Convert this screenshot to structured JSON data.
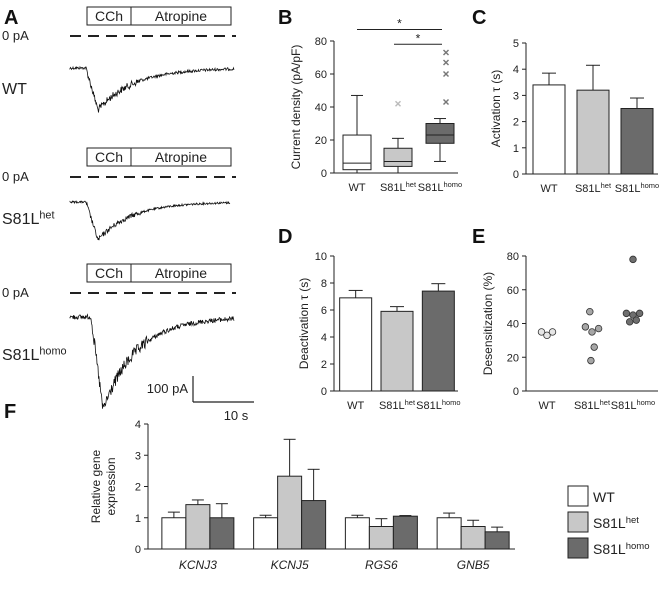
{
  "panels": {
    "A": {
      "letter": "A",
      "bar_labels": [
        "CCh",
        "Atropine"
      ],
      "baseline_label": "0 pA",
      "traces": [
        {
          "label_main": "WT",
          "label_sup": ""
        },
        {
          "label_main": "S81L",
          "label_sup": "het"
        },
        {
          "label_main": "S81L",
          "label_sup": "homo"
        }
      ],
      "scale_y_label": "100 pA",
      "scale_x_label": "10 s"
    },
    "B": {
      "letter": "B"
    },
    "C": {
      "letter": "C"
    },
    "D": {
      "letter": "D"
    },
    "E": {
      "letter": "E"
    },
    "F": {
      "letter": "F"
    }
  },
  "genotypes": [
    {
      "main": "WT",
      "sup": ""
    },
    {
      "main": "S81L",
      "sup": "het"
    },
    {
      "main": "S81L",
      "sup": "homo"
    }
  ],
  "colors": {
    "WT": "#ffffff",
    "S81L_het": "#c8c8c8",
    "S81L_homo": "#6b6b6b",
    "outlier_het": "#bbbbbb",
    "outlier_homo": "#777777"
  },
  "chart_data": [
    {
      "panel": "B",
      "type": "box",
      "ylabel": "Current density (pA/pF)",
      "ylim": [
        0,
        80
      ],
      "yticks": [
        0,
        20,
        40,
        60,
        80
      ],
      "boxes": [
        {
          "q1": 2,
          "median": 6,
          "q3": 23,
          "whisker_low": 0,
          "whisker_high": 47,
          "outliers": []
        },
        {
          "q1": 4,
          "median": 7,
          "q3": 15,
          "whisker_low": 0,
          "whisker_high": 21,
          "outliers": [
            42
          ]
        },
        {
          "q1": 18,
          "median": 23,
          "q3": 30,
          "whisker_low": 7,
          "whisker_high": 33,
          "outliers": [
            43,
            60,
            67,
            73
          ]
        }
      ],
      "significance": [
        {
          "from": 0,
          "to": 2,
          "y": 87,
          "label": "*"
        },
        {
          "from": 1,
          "to": 2,
          "y": 78,
          "label": "*"
        }
      ]
    },
    {
      "panel": "C",
      "type": "bar",
      "ylabel": "Activation τ (s)",
      "ylim": [
        0,
        5
      ],
      "yticks": [
        0,
        1,
        2,
        3,
        4,
        5
      ],
      "values": [
        3.4,
        3.2,
        2.5
      ],
      "errors": [
        0.45,
        0.95,
        0.4
      ]
    },
    {
      "panel": "D",
      "type": "bar",
      "ylabel": "Deactivation τ (s)",
      "ylim": [
        0,
        10
      ],
      "yticks": [
        0,
        2,
        4,
        6,
        8,
        10
      ],
      "values": [
        6.9,
        5.9,
        7.4
      ],
      "errors": [
        0.55,
        0.35,
        0.55
      ]
    },
    {
      "panel": "E",
      "type": "scatter",
      "ylabel": "Desensitization (%)",
      "ylim": [
        0,
        80
      ],
      "yticks": [
        0,
        20,
        40,
        60,
        80
      ],
      "groups": [
        {
          "points": [
            [
              -0.25,
              35
            ],
            [
              0,
              33
            ],
            [
              0.25,
              35
            ]
          ]
        },
        {
          "points": [
            [
              -0.3,
              38
            ],
            [
              0,
              35
            ],
            [
              0.3,
              37
            ],
            [
              -0.1,
              47
            ],
            [
              0.1,
              26
            ],
            [
              -0.05,
              18
            ]
          ]
        },
        {
          "points": [
            [
              -0.3,
              46
            ],
            [
              0,
              45
            ],
            [
              0.3,
              46
            ],
            [
              0.15,
              42
            ],
            [
              -0.15,
              41
            ],
            [
              0,
              78
            ]
          ]
        }
      ]
    },
    {
      "panel": "F",
      "type": "bar",
      "ylabel": [
        "Relative gene",
        "expression"
      ],
      "ylim": [
        0,
        4
      ],
      "yticks": [
        0,
        1,
        2,
        3,
        4
      ],
      "categories": [
        "KCNJ3",
        "KCNJ5",
        "RGS6",
        "GNB5"
      ],
      "series": [
        {
          "name": "WT",
          "name_sup": "",
          "values": [
            1.0,
            1.0,
            1.0,
            1.0
          ],
          "errors": [
            0.18,
            0.08,
            0.08,
            0.15
          ]
        },
        {
          "name": "S81L",
          "name_sup": "het",
          "values": [
            1.42,
            2.33,
            0.72,
            0.72
          ],
          "errors": [
            0.15,
            1.18,
            0.25,
            0.2
          ]
        },
        {
          "name": "S81L",
          "name_sup": "homo",
          "values": [
            1.0,
            1.55,
            1.05,
            0.55
          ],
          "errors": [
            0.45,
            1.0,
            0.02,
            0.15
          ]
        }
      ]
    }
  ]
}
